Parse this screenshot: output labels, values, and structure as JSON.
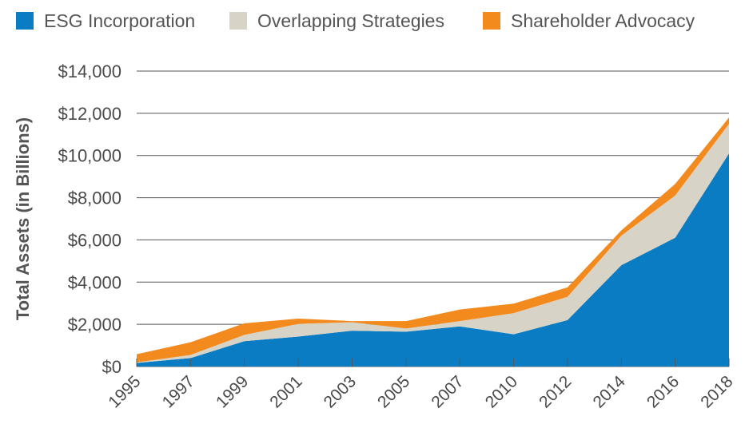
{
  "chart_data": {
    "type": "area",
    "stacked": true,
    "ylabel": "Total Assets (in Billions)",
    "xlabel": "",
    "title": "",
    "ylim": [
      0,
      14000
    ],
    "yticks": [
      "$0",
      "$2,000",
      "$4,000",
      "$6,000",
      "$8,000",
      "$10,000",
      "$12,000",
      "$14,000"
    ],
    "ytick_values": [
      0,
      2000,
      4000,
      6000,
      8000,
      10000,
      12000,
      14000
    ],
    "categories": [
      "1995",
      "1997",
      "1999",
      "2001",
      "2003",
      "2005",
      "2007",
      "2010",
      "2012",
      "2014",
      "2016",
      "2018"
    ],
    "grid": true,
    "legend_position": "top",
    "series": [
      {
        "name": "ESG Incorporation",
        "color": "#0a7cc4",
        "values": [
          170,
          400,
          1200,
          1420,
          1700,
          1650,
          1900,
          1530,
          2200,
          4800,
          6100,
          10100
        ]
      },
      {
        "name": "Overlapping Strategies",
        "color": "#d8d3c7",
        "values": [
          30,
          150,
          300,
          600,
          400,
          150,
          250,
          1000,
          1100,
          1400,
          2000,
          1400
        ]
      },
      {
        "name": "Shareholder Advocacy",
        "color": "#f28a1d",
        "values": [
          380,
          600,
          550,
          250,
          50,
          350,
          550,
          450,
          450,
          250,
          550,
          300
        ]
      }
    ]
  }
}
